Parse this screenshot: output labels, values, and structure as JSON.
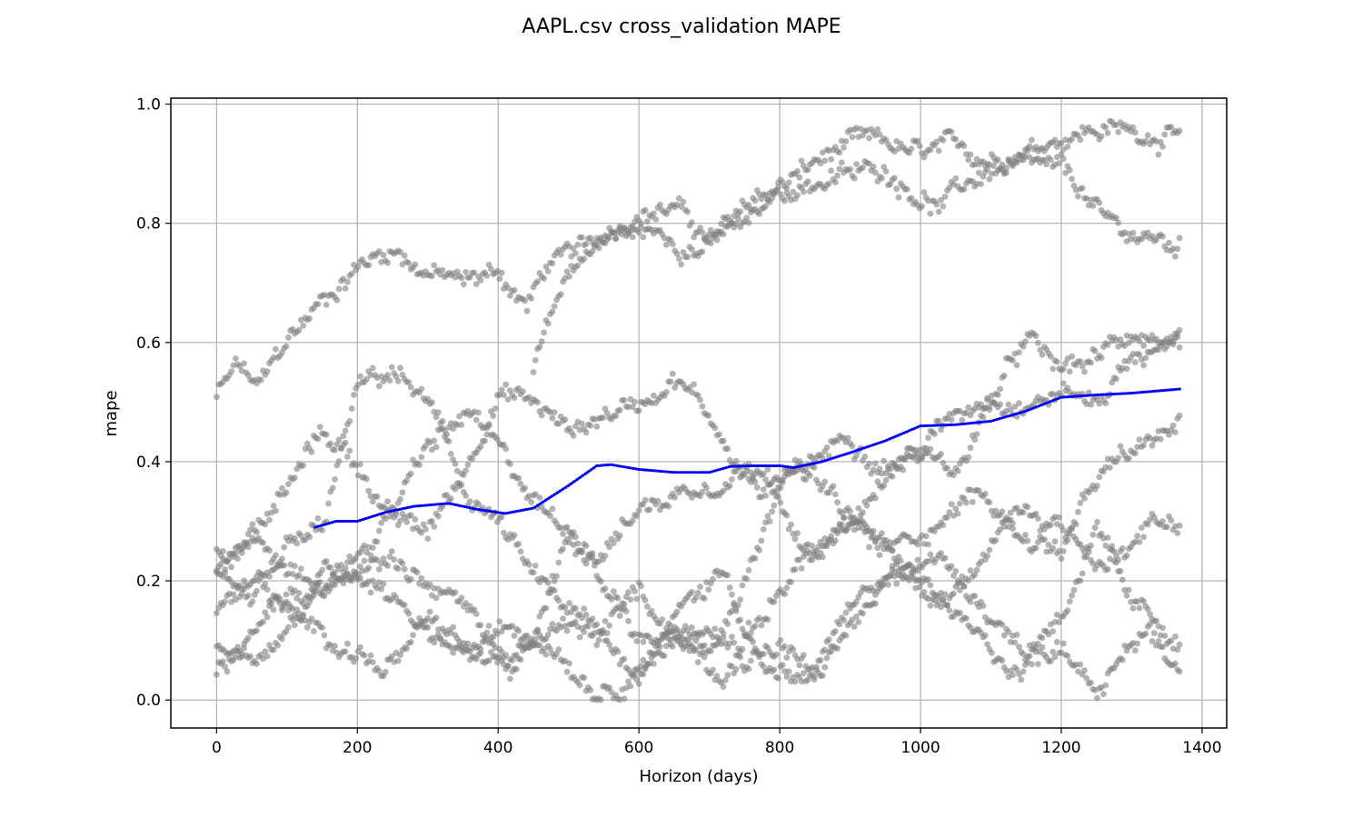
{
  "chart_data": {
    "type": "scatter",
    "title": "AAPL.csv cross_validation MAPE",
    "xlabel": "Horizon (days)",
    "ylabel": "mape",
    "xlim": [
      -65,
      1435
    ],
    "ylim": [
      -0.047,
      1.01
    ],
    "xticks": [
      0,
      200,
      400,
      600,
      800,
      1000,
      1200,
      1400
    ],
    "yticks": [
      0.0,
      0.2,
      0.4,
      0.6,
      0.8,
      1.0
    ],
    "grid": true,
    "colors": {
      "points": "#808080",
      "mean_line": "#0000ff"
    },
    "series": [
      {
        "kind": "scatter",
        "trajectories": [
          {
            "x": [
              0,
              30,
              60,
              100,
              150,
              200,
              250,
              300,
              350,
              400,
              440,
              470,
              520,
              560,
              600,
              650,
              700,
              750,
              800,
              850,
              900,
              950,
              1000,
              1050,
              1100,
              1150,
              1200,
              1250,
              1300,
              1370
            ],
            "y": [
              0.51,
              0.56,
              0.52,
              0.6,
              0.67,
              0.73,
              0.76,
              0.72,
              0.7,
              0.72,
              0.66,
              0.73,
              0.75,
              0.79,
              0.82,
              0.83,
              0.77,
              0.8,
              0.86,
              0.9,
              0.93,
              0.93,
              0.91,
              0.92,
              0.91,
              0.93,
              0.95,
              0.96,
              0.955,
              0.95
            ]
          },
          {
            "x": [
              450,
              500,
              550,
              600,
              650,
              700,
              750,
              800,
              850,
              900,
              950,
              1000,
              1030,
              1060,
              1100,
              1150,
              1200,
              1230,
              1260,
              1300,
              1370
            ],
            "y": [
              0.55,
              0.72,
              0.78,
              0.79,
              0.77,
              0.76,
              0.82,
              0.85,
              0.87,
              0.88,
              0.89,
              0.85,
              0.83,
              0.86,
              0.89,
              0.89,
              0.88,
              0.85,
              0.8,
              0.78,
              0.76
            ]
          },
          {
            "x": [
              0,
              50,
              100,
              150,
              200,
              250,
              300,
              350,
              400,
              450,
              500,
              550,
              600,
              650,
              700,
              750,
              800,
              850,
              900,
              950,
              1000,
              1050,
              1100,
              1150,
              1200,
              1250,
              1300,
              1370
            ],
            "y": [
              0.25,
              0.28,
              0.35,
              0.45,
              0.4,
              0.3,
              0.28,
              0.38,
              0.52,
              0.5,
              0.45,
              0.48,
              0.5,
              0.55,
              0.48,
              0.38,
              0.32,
              0.25,
              0.3,
              0.38,
              0.42,
              0.38,
              0.5,
              0.6,
              0.55,
              0.57,
              0.62,
              0.59
            ]
          },
          {
            "x": [
              0,
              50,
              100,
              150,
              200,
              250,
              300,
              350,
              400,
              450,
              500,
              550,
              600,
              650,
              700,
              750,
              800,
              850,
              900,
              950,
              1000,
              1050,
              1100,
              1150,
              1200,
              1250,
              1300,
              1370
            ],
            "y": [
              0.2,
              0.15,
              0.25,
              0.28,
              0.52,
              0.55,
              0.5,
              0.35,
              0.3,
              0.2,
              0.15,
              0.1,
              0.05,
              0.12,
              0.08,
              0.2,
              0.35,
              0.4,
              0.45,
              0.4,
              0.42,
              0.48,
              0.52,
              0.5,
              0.52,
              0.5,
              0.58,
              0.6
            ]
          },
          {
            "x": [
              0,
              60,
              120,
              180,
              240,
              300,
              360,
              420,
              480,
              540,
              600,
              660,
              720,
              780,
              840,
              900,
              960,
              1020,
              1080,
              1140,
              1200,
              1260,
              1320,
              1370
            ],
            "y": [
              0.05,
              0.12,
              0.18,
              0.22,
              0.3,
              0.42,
              0.48,
              0.38,
              0.3,
              0.25,
              0.32,
              0.35,
              0.38,
              0.4,
              0.38,
              0.3,
              0.25,
              0.3,
              0.35,
              0.28,
              0.25,
              0.38,
              0.42,
              0.47
            ]
          },
          {
            "x": [
              0,
              60,
              120,
              180,
              240,
              300,
              360,
              420,
              480,
              540,
              600,
              660,
              720,
              780,
              840,
              900,
              960,
              1020,
              1080,
              1140,
              1200,
              1260,
              1320,
              1370
            ],
            "y": [
              0.1,
              0.08,
              0.15,
              0.22,
              0.25,
              0.2,
              0.15,
              0.05,
              0.12,
              0.1,
              0.18,
              0.1,
              0.05,
              0.15,
              0.25,
              0.28,
              0.25,
              0.15,
              0.22,
              0.32,
              0.3,
              0.22,
              0.3,
              0.3
            ]
          },
          {
            "x": [
              0,
              60,
              120,
              180,
              240,
              300,
              360,
              420,
              480,
              540,
              600,
              660,
              720,
              780,
              840,
              900,
              960,
              1020,
              1080,
              1140,
              1200,
              1260,
              1320,
              1370
            ],
            "y": [
              0.15,
              0.2,
              0.12,
              0.1,
              0.05,
              0.12,
              0.08,
              0.12,
              0.1,
              0.02,
              0.05,
              0.15,
              0.22,
              0.05,
              0.02,
              0.12,
              0.2,
              0.18,
              0.1,
              0.05,
              0.1,
              0.02,
              0.12,
              0.05
            ]
          },
          {
            "x": [
              0,
              50,
              100,
              150,
              200,
              250,
              300,
              350,
              400,
              450,
              500,
              550,
              600,
              650,
              700,
              750,
              800,
              850,
              900,
              950,
              1000,
              1050,
              1100,
              1150,
              1200,
              1250,
              1300,
              1370
            ],
            "y": [
              0.22,
              0.3,
              0.2,
              0.18,
              0.22,
              0.18,
              0.12,
              0.08,
              0.05,
              0.1,
              0.28,
              0.2,
              0.1,
              0.12,
              0.15,
              0.08,
              0.1,
              0.05,
              0.15,
              0.2,
              0.25,
              0.22,
              0.15,
              0.08,
              0.15,
              0.28,
              0.15,
              0.1
            ]
          }
        ]
      },
      {
        "kind": "line",
        "x": [
          140,
          170,
          200,
          240,
          280,
          330,
          370,
          410,
          450,
          500,
          540,
          560,
          600,
          650,
          700,
          730,
          760,
          800,
          820,
          860,
          900,
          950,
          1000,
          1050,
          1100,
          1150,
          1200,
          1250,
          1300,
          1370
        ],
        "y": [
          0.29,
          0.3,
          0.3,
          0.315,
          0.325,
          0.33,
          0.32,
          0.313,
          0.322,
          0.36,
          0.393,
          0.395,
          0.387,
          0.382,
          0.382,
          0.392,
          0.393,
          0.393,
          0.39,
          0.4,
          0.415,
          0.435,
          0.46,
          0.462,
          0.468,
          0.485,
          0.508,
          0.512,
          0.515,
          0.522
        ]
      }
    ]
  }
}
